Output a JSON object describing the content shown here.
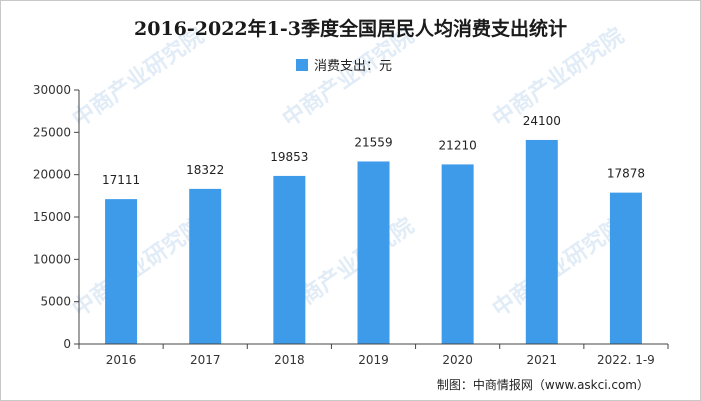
{
  "title": "2016-2022年1-3季度全国居民人均消费支出统计",
  "legend_label": "消费支出：元",
  "source": "制图：中商情报网（www.askci.com）",
  "watermark": "中商产业研究院",
  "colors": {
    "bar": "#3e9bea"
  },
  "chart_data": {
    "type": "bar",
    "categories": [
      "2016",
      "2017",
      "2018",
      "2019",
      "2020",
      "2021",
      "2022. 1-9"
    ],
    "series": [
      {
        "name": "消费支出：元",
        "values": [
          17111,
          18322,
          19853,
          21559,
          21210,
          24100,
          17878
        ]
      }
    ],
    "ylim": [
      0,
      30000
    ],
    "yticks": [
      0,
      5000,
      10000,
      15000,
      20000,
      25000,
      30000
    ],
    "grid": false,
    "legend": "top-center"
  }
}
